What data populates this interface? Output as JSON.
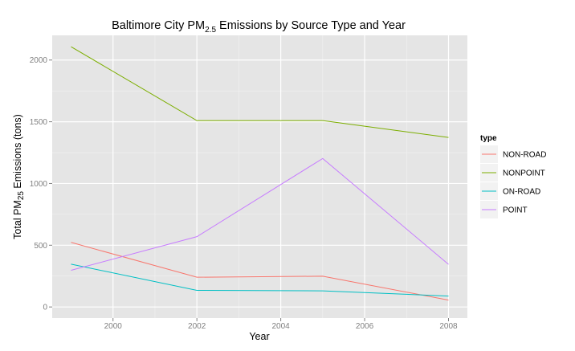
{
  "chart_data": {
    "type": "line",
    "title": {
      "prefix": "Baltimore City PM",
      "subscript": "2.5",
      "suffix": " Emissions by Source Type and Year"
    },
    "xlabel": "Year",
    "ylabel": {
      "prefix": "Total PM",
      "subscript": "25",
      "suffix": " Emissions (tons)"
    },
    "x": [
      1999,
      2002,
      2005,
      2008
    ],
    "xlim": [
      1998.55,
      2008.45
    ],
    "ylim": [
      -90,
      2200
    ],
    "x_ticks": [
      "2000",
      "2002",
      "2004",
      "2006",
      "2008"
    ],
    "y_ticks": [
      "0",
      "500",
      "1000",
      "1500",
      "2000"
    ],
    "grid": true,
    "legend": {
      "title": "type",
      "placement": "right"
    },
    "series": [
      {
        "name": "NON-ROAD",
        "color": "#F8766D",
        "values": [
          522.94,
          240.85,
          248.93,
          55.82
        ]
      },
      {
        "name": "NONPOINT",
        "color": "#7CAE00",
        "values": [
          2107.63,
          1509.5,
          1509.5,
          1373.21
        ]
      },
      {
        "name": "ON-ROAD",
        "color": "#00BFC4",
        "values": [
          346.82,
          134.31,
          130.43,
          88.28
        ]
      },
      {
        "name": "POINT",
        "color": "#C77CFF",
        "values": [
          296.8,
          569.26,
          1202.49,
          344.98
        ]
      }
    ]
  }
}
